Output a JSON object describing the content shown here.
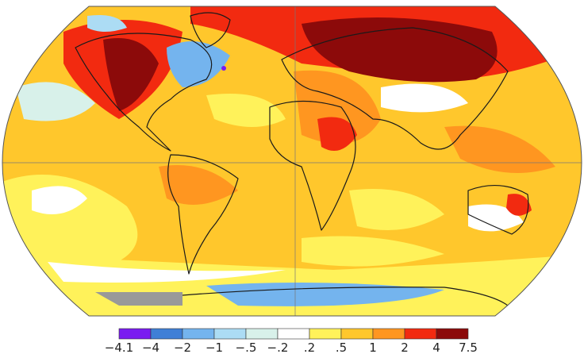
{
  "legend": {
    "labels": [
      "−4.1",
      "−4",
      "−2",
      "−1",
      "−.5",
      "−.2",
      ".2",
      ".5",
      "1",
      "2",
      "4",
      "7.5"
    ],
    "colors": [
      "#7a1cf0",
      "#3f7fd6",
      "#74b4ee",
      "#acdcf4",
      "#d8f1ea",
      "#ffffff",
      "#fff25a",
      "#ffc72c",
      "#ff9620",
      "#f22a10",
      "#8c0a0a"
    ]
  }
}
